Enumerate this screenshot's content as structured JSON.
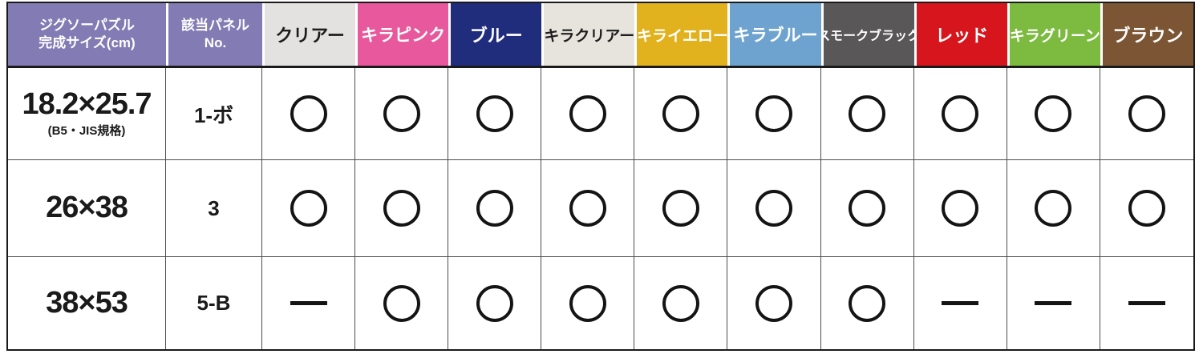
{
  "table": {
    "header_bg": "#837BB4",
    "size_header": {
      "line1": "ジグソーパズル",
      "line2": "完成サイズ(cm)"
    },
    "panel_header": {
      "line1": "該当パネル",
      "line2": "No."
    },
    "columns": [
      {
        "label": "クリアー",
        "bg": "#E3E2E0",
        "fg": "#1d1d1d"
      },
      {
        "label": "キラピンク",
        "bg": "#E7599C",
        "fg": "#ffffff"
      },
      {
        "label": "ブルー",
        "bg": "#202C7C",
        "fg": "#ffffff"
      },
      {
        "label": "キラクリアー",
        "bg": "#E7E4DD",
        "fg": "#1d1d1d"
      },
      {
        "label": "キライエロー",
        "bg": "#E2B11E",
        "fg": "#ffffff"
      },
      {
        "label": "キラブルー",
        "bg": "#6FA3CF",
        "fg": "#ffffff"
      },
      {
        "label": "スモークブラック",
        "bg": "#595757",
        "fg": "#ffffff"
      },
      {
        "label": "レッド",
        "bg": "#D6151C",
        "fg": "#ffffff"
      },
      {
        "label": "キラグリーン",
        "bg": "#7CBA40",
        "fg": "#ffffff"
      },
      {
        "label": "ブラウン",
        "bg": "#7B5534",
        "fg": "#ffffff"
      }
    ],
    "rows": [
      {
        "size": "18.2×25.7",
        "size_note": "(B5・JIS規格)",
        "panel": "1-ボ",
        "marks": [
          "circle",
          "circle",
          "circle",
          "circle",
          "circle",
          "circle",
          "circle",
          "circle",
          "circle",
          "circle"
        ]
      },
      {
        "size": "26×38",
        "size_note": "",
        "panel": "3",
        "marks": [
          "circle",
          "circle",
          "circle",
          "circle",
          "circle",
          "circle",
          "circle",
          "circle",
          "circle",
          "circle"
        ]
      },
      {
        "size": "38×53",
        "size_note": "",
        "panel": "5-B",
        "marks": [
          "dash",
          "circle",
          "circle",
          "circle",
          "circle",
          "circle",
          "circle",
          "dash",
          "dash",
          "dash"
        ]
      }
    ]
  }
}
